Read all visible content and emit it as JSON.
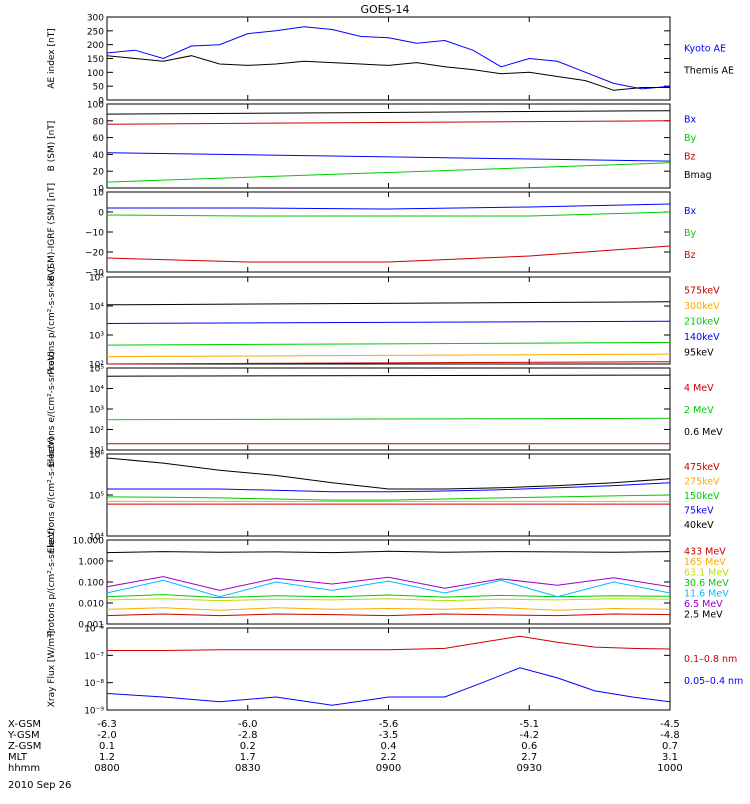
{
  "title": "GOES-14",
  "date_label": "2010 Sep 26",
  "ephemeris": {
    "rows": [
      {
        "label": "X-GSM",
        "values": [
          "-6.3",
          "-6.0",
          "-5.6",
          "-5.1",
          "-4.5"
        ]
      },
      {
        "label": "Y-GSM",
        "values": [
          "-2.0",
          "-2.8",
          "-3.5",
          "-4.2",
          "-4.8"
        ]
      },
      {
        "label": "Z-GSM",
        "values": [
          "0.1",
          "0.2",
          "0.4",
          "0.6",
          "0.7"
        ]
      },
      {
        "label": "MLT",
        "values": [
          "1.2",
          "1.7",
          "2.2",
          "2.7",
          "3.1"
        ]
      },
      {
        "label": "hhmm",
        "values": [
          "0800",
          "0830",
          "0900",
          "0930",
          "1000"
        ]
      }
    ]
  },
  "colors": {
    "black": "#000000",
    "blue": "#0000ff",
    "red": "#cc0000",
    "green": "#00cc00",
    "orange": "#ffaa00",
    "cyan": "#00bbff",
    "yellowgreen": "#bbdd00",
    "purple": "#9900cc"
  },
  "chart_data": [
    {
      "type": "line",
      "panel": "ae",
      "ylabel": "AE index [nT]",
      "ylim": [
        0,
        300
      ],
      "scale": "linear",
      "yticks": [
        0,
        50,
        100,
        150,
        200,
        250,
        300
      ],
      "yticklabels": [
        "0",
        "50",
        "100",
        "150",
        "200",
        "250",
        "300"
      ],
      "x": [
        0,
        6,
        12,
        18,
        24,
        30,
        36,
        42,
        48,
        54,
        60,
        66,
        72,
        78,
        84,
        90,
        96,
        102,
        108,
        114,
        120
      ],
      "series": [
        {
          "name": "Kyoto AE",
          "color": "blue",
          "values": [
            170,
            180,
            150,
            195,
            200,
            240,
            250,
            265,
            255,
            230,
            225,
            205,
            215,
            180,
            120,
            150,
            140,
            100,
            60,
            40,
            50
          ]
        },
        {
          "name": "Themis AE",
          "color": "black",
          "values": [
            160,
            150,
            140,
            160,
            130,
            125,
            130,
            140,
            135,
            130,
            125,
            135,
            120,
            110,
            95,
            100,
            85,
            70,
            35,
            45,
            45
          ]
        }
      ]
    },
    {
      "type": "line",
      "panel": "b",
      "ylabel": "B (SM) [nT]",
      "ylim": [
        0,
        100
      ],
      "scale": "linear",
      "yticks": [
        0,
        20,
        40,
        60,
        80,
        100
      ],
      "yticklabels": [
        "0",
        "20",
        "40",
        "60",
        "80",
        "100"
      ],
      "x": [
        0,
        120
      ],
      "series": [
        {
          "name": "Bx",
          "color": "blue",
          "values": [
            42,
            32
          ]
        },
        {
          "name": "By",
          "color": "green",
          "values": [
            7,
            30
          ]
        },
        {
          "name": "Bz",
          "color": "red",
          "values": [
            76,
            80
          ]
        },
        {
          "name": "Bmag",
          "color": "black",
          "values": [
            88,
            92
          ]
        }
      ]
    },
    {
      "type": "line",
      "panel": "bd",
      "ylabel": "B (SM)-IGRF (SM) [nT]",
      "ylim": [
        -30,
        10
      ],
      "scale": "linear",
      "yticks": [
        -30,
        -20,
        -10,
        0,
        10
      ],
      "yticklabels": [
        "−30",
        "−20",
        "−10",
        "0",
        "10"
      ],
      "x": [
        0,
        30,
        60,
        90,
        120
      ],
      "series": [
        {
          "name": "Bx",
          "color": "blue",
          "values": [
            2,
            2,
            1.5,
            2.5,
            4
          ]
        },
        {
          "name": "By",
          "color": "green",
          "values": [
            -1.5,
            -2,
            -2,
            -2,
            0
          ]
        },
        {
          "name": "Bz",
          "color": "red",
          "values": [
            -23,
            -25,
            -25,
            -22,
            -17
          ]
        }
      ]
    },
    {
      "type": "line",
      "panel": "pl",
      "ylabel": "Protons p/(cm²-s-sr-keV)",
      "ylim": [
        100,
        100000
      ],
      "scale": "log",
      "yticks": [
        100,
        1000,
        10000,
        100000
      ],
      "yticklabels": [
        "10²",
        "10³",
        "10⁴",
        "10⁵"
      ],
      "x": [
        0,
        120
      ],
      "series": [
        {
          "name": "575keV",
          "color": "red",
          "values": [
            100,
            120
          ]
        },
        {
          "name": "300keV",
          "color": "orange",
          "values": [
            180,
            220
          ]
        },
        {
          "name": "210keV",
          "color": "green",
          "values": [
            450,
            550
          ]
        },
        {
          "name": "140keV",
          "color": "blue",
          "values": [
            2500,
            3000
          ]
        },
        {
          "name": "95keV",
          "color": "black",
          "values": [
            11000,
            14000
          ]
        }
      ]
    },
    {
      "type": "line",
      "panel": "el",
      "ylabel": "Electrons e/(cm²-s-sr-keV)",
      "ylim": [
        10,
        100000
      ],
      "scale": "log",
      "yticks": [
        10,
        100,
        1000,
        10000,
        100000
      ],
      "yticklabels": [
        "10¹",
        "10²",
        "10³",
        "10⁴",
        "10⁵"
      ],
      "x": [
        0,
        120
      ],
      "series": [
        {
          "name": "4 MeV",
          "color": "red",
          "values": [
            20,
            20
          ]
        },
        {
          "name": "2 MeV",
          "color": "green",
          "values": [
            300,
            350
          ]
        },
        {
          "name": "0.6 MeV",
          "color": "black",
          "values": [
            40000,
            45000
          ]
        }
      ]
    },
    {
      "type": "line",
      "panel": "eh",
      "ylabel": "Electrons e/(cm²-s-sr-keV)",
      "ylim": [
        10000,
        1000000
      ],
      "scale": "log",
      "yticks": [
        10000,
        100000,
        1000000
      ],
      "yticklabels": [
        "10⁴",
        "10⁵",
        "10⁶"
      ],
      "x": [
        0,
        12,
        24,
        36,
        48,
        60,
        72,
        84,
        96,
        108,
        120
      ],
      "series": [
        {
          "name": "475keV",
          "color": "red",
          "values": [
            60000,
            60000,
            60000,
            60000,
            60000,
            60000,
            60000,
            60000,
            60000,
            60000,
            60000
          ]
        },
        {
          "name": "275keV",
          "color": "orange",
          "values": [
            70000,
            70000,
            70000,
            70000,
            70000,
            70000,
            70000,
            70000,
            70000,
            70000,
            70000
          ]
        },
        {
          "name": "150keV",
          "color": "green",
          "values": [
            90000,
            88000,
            85000,
            80000,
            75000,
            75000,
            80000,
            85000,
            90000,
            95000,
            100000
          ]
        },
        {
          "name": "75keV",
          "color": "blue",
          "values": [
            140000,
            140000,
            140000,
            130000,
            120000,
            120000,
            125000,
            135000,
            150000,
            170000,
            200000
          ]
        },
        {
          "name": "40keV",
          "color": "black",
          "values": [
            800000,
            600000,
            400000,
            300000,
            200000,
            140000,
            140000,
            150000,
            170000,
            200000,
            250000
          ]
        }
      ]
    },
    {
      "type": "line",
      "panel": "ph",
      "ylabel": "Protons p/(cm²-s-sr-keV)",
      "ylim": [
        0.001,
        10
      ],
      "scale": "log",
      "yticks": [
        0.001,
        0.01,
        0.1,
        1,
        10
      ],
      "yticklabels": [
        "0.001",
        "0.010",
        "0.100",
        "1.000",
        "10.000"
      ],
      "x": [
        0,
        12,
        24,
        36,
        48,
        60,
        72,
        84,
        96,
        108,
        120
      ],
      "series": [
        {
          "name": "433 MeV",
          "color": "red",
          "values": [
            0.0025,
            0.003,
            0.0025,
            0.003,
            0.0028,
            0.0025,
            0.003,
            0.0027,
            0.0025,
            0.003,
            0.0028
          ]
        },
        {
          "name": "165 MeV",
          "color": "orange",
          "values": [
            0.005,
            0.006,
            0.0045,
            0.006,
            0.005,
            0.0055,
            0.005,
            0.006,
            0.0045,
            0.0055,
            0.005
          ]
        },
        {
          "name": "63.1 MeV",
          "color": "yellowgreen",
          "values": [
            0.014,
            0.016,
            0.013,
            0.015,
            0.014,
            0.016,
            0.013,
            0.015,
            0.014,
            0.016,
            0.015
          ]
        },
        {
          "name": "30.6 MeV",
          "color": "green",
          "values": [
            0.02,
            0.025,
            0.018,
            0.022,
            0.02,
            0.024,
            0.019,
            0.023,
            0.02,
            0.022,
            0.021
          ]
        },
        {
          "name": "11.6 MeV",
          "color": "cyan",
          "values": [
            0.03,
            0.12,
            0.02,
            0.1,
            0.04,
            0.11,
            0.03,
            0.12,
            0.02,
            0.1,
            0.03
          ]
        },
        {
          "name": "6.5 MeV",
          "color": "purple",
          "values": [
            0.06,
            0.18,
            0.04,
            0.15,
            0.08,
            0.17,
            0.05,
            0.14,
            0.07,
            0.16,
            0.06
          ]
        },
        {
          "name": "2.5 MeV",
          "color": "black",
          "values": [
            2.5,
            2.8,
            2.6,
            2.7,
            2.5,
            2.9,
            2.6,
            2.8,
            2.7,
            2.6,
            2.8
          ]
        }
      ]
    },
    {
      "type": "line",
      "panel": "xr",
      "ylabel": "Xray Flux [W/m²]",
      "ylim": [
        1e-09,
        1e-06
      ],
      "scale": "log",
      "yticks": [
        1e-09,
        1e-08,
        1e-07,
        1e-06
      ],
      "yticklabels": [
        "10⁻⁹",
        "10⁻⁸",
        "10⁻⁷",
        "10⁻⁶"
      ],
      "x": [
        0,
        12,
        24,
        36,
        48,
        60,
        72,
        80,
        88,
        96,
        104,
        112,
        120
      ],
      "series": [
        {
          "name": "0.1–0.8 nm",
          "color": "red",
          "values": [
            1.5e-07,
            1.5e-07,
            1.6e-07,
            1.6e-07,
            1.6e-07,
            1.6e-07,
            1.8e-07,
            3e-07,
            5e-07,
            3e-07,
            2e-07,
            1.8e-07,
            1.7e-07
          ]
        },
        {
          "name": "0.05–0.4 nm",
          "color": "blue",
          "values": [
            4e-09,
            3e-09,
            2e-09,
            3e-09,
            1.5e-09,
            3e-09,
            3e-09,
            1e-08,
            3.5e-08,
            1.5e-08,
            5e-09,
            3e-09,
            2e-09
          ]
        }
      ]
    }
  ]
}
